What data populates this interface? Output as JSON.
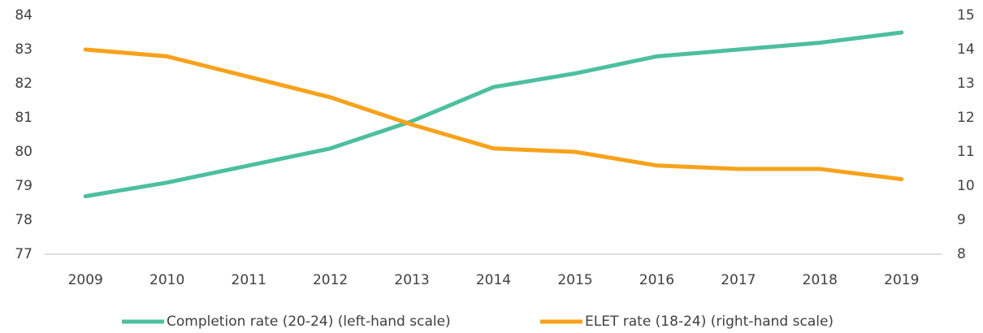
{
  "chart_data": {
    "type": "line",
    "categories": [
      "2009",
      "2010",
      "2011",
      "2012",
      "2013",
      "2014",
      "2015",
      "2016",
      "2017",
      "2018",
      "2019"
    ],
    "series": [
      {
        "name": "Completion rate (20-24) (left-hand scale)",
        "color": "#4dbf9f",
        "values": [
          78.7,
          79.1,
          79.6,
          80.1,
          80.9,
          81.9,
          82.3,
          82.8,
          83.0,
          83.2,
          83.5
        ]
      },
      {
        "name": "ELET rate (18-24) (right-hand scale)",
        "color": "#f7a21b",
        "axis": "y2",
        "values": [
          14.0,
          13.8,
          13.2,
          12.6,
          11.8,
          11.1,
          11.0,
          10.6,
          10.5,
          10.5,
          10.2
        ]
      }
    ],
    "ylim": [
      77,
      84
    ],
    "yticks": [
      77,
      78,
      79,
      80,
      81,
      82,
      83,
      84
    ],
    "y2lim": [
      8,
      15
    ],
    "y2ticks": [
      8,
      9,
      10,
      11,
      12,
      13,
      14,
      15
    ],
    "legend": "bottom"
  }
}
